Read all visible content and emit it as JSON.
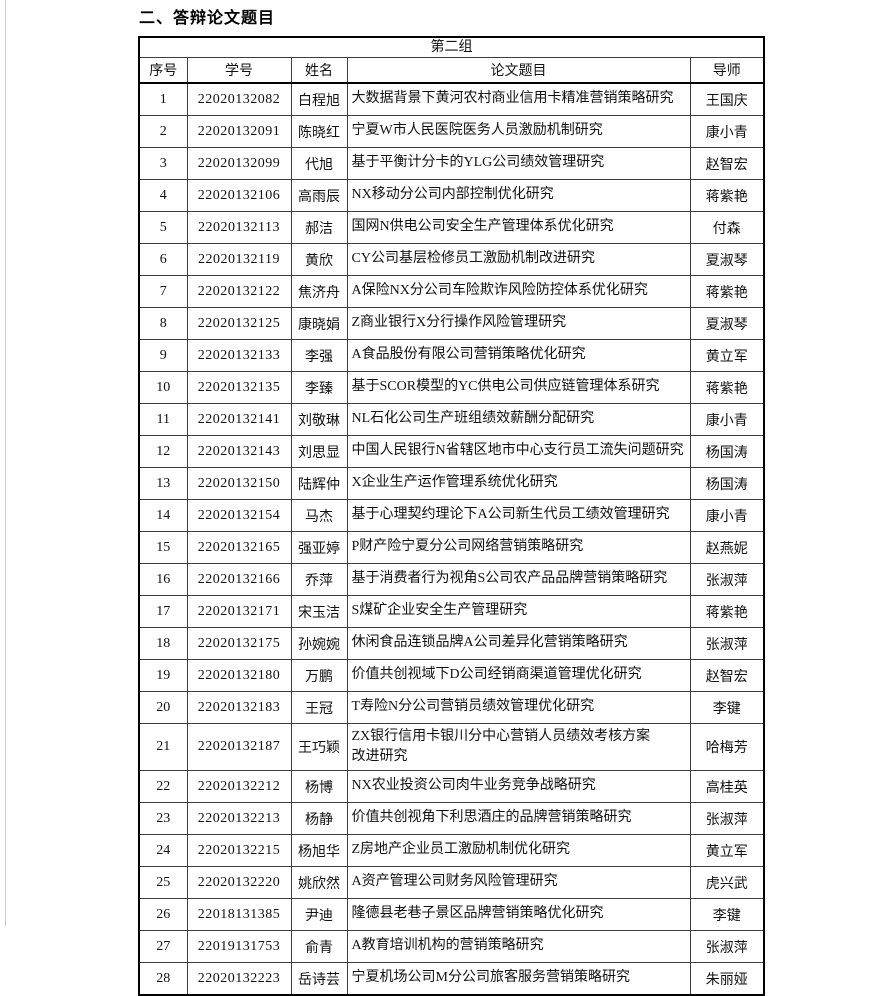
{
  "page": {
    "section_title": "二、答辩论文题目"
  },
  "table": {
    "group_title": "第二组",
    "columns": [
      "序号",
      "学号",
      "姓名",
      "论文题目",
      "导师"
    ],
    "rows": [
      {
        "no": "1",
        "student_id": "22020132082",
        "name": "白程旭",
        "thesis_title": "大数据背景下黄河农村商业信用卡精准营销策略研究",
        "advisor": "王国庆"
      },
      {
        "no": "2",
        "student_id": "22020132091",
        "name": "陈晓红",
        "thesis_title": "宁夏W市人民医院医务人员激励机制研究",
        "advisor": "康小青"
      },
      {
        "no": "3",
        "student_id": "22020132099",
        "name": "代旭",
        "thesis_title": "基于平衡计分卡的YLG公司绩效管理研究",
        "advisor": "赵智宏"
      },
      {
        "no": "4",
        "student_id": "22020132106",
        "name": "高雨辰",
        "thesis_title": "NX移动分公司内部控制优化研究",
        "advisor": "蒋紫艳"
      },
      {
        "no": "5",
        "student_id": "22020132113",
        "name": "郝洁",
        "thesis_title": "国网N供电公司安全生产管理体系优化研究",
        "advisor": "付森"
      },
      {
        "no": "6",
        "student_id": "22020132119",
        "name": "黄欣",
        "thesis_title": "CY公司基层检修员工激励机制改进研究",
        "advisor": "夏淑琴"
      },
      {
        "no": "7",
        "student_id": "22020132122",
        "name": "焦济舟",
        "thesis_title": "A保险NX分公司车险欺诈风险防控体系优化研究",
        "advisor": "蒋紫艳"
      },
      {
        "no": "8",
        "student_id": "22020132125",
        "name": "康晓娟",
        "thesis_title": "Z商业银行X分行操作风险管理研究",
        "advisor": "夏淑琴"
      },
      {
        "no": "9",
        "student_id": "22020132133",
        "name": "李强",
        "thesis_title": "A食品股份有限公司营销策略优化研究",
        "advisor": "黄立军"
      },
      {
        "no": "10",
        "student_id": "22020132135",
        "name": "李臻",
        "thesis_title": "基于SCOR模型的YC供电公司供应链管理体系研究",
        "advisor": "蒋紫艳"
      },
      {
        "no": "11",
        "student_id": "22020132141",
        "name": "刘敬琳",
        "thesis_title": "NL石化公司生产班组绩效薪酬分配研究",
        "advisor": "康小青"
      },
      {
        "no": "12",
        "student_id": "22020132143",
        "name": "刘思显",
        "thesis_title": "中国人民银行N省辖区地市中心支行员工流失问题研究",
        "advisor": "杨国涛"
      },
      {
        "no": "13",
        "student_id": "22020132150",
        "name": "陆辉仲",
        "thesis_title": "X企业生产运作管理系统优化研究",
        "advisor": "杨国涛"
      },
      {
        "no": "14",
        "student_id": "22020132154",
        "name": "马杰",
        "thesis_title": "基于心理契约理论下A公司新生代员工绩效管理研究",
        "advisor": "康小青"
      },
      {
        "no": "15",
        "student_id": "22020132165",
        "name": "强亚婷",
        "thesis_title": "P财产险宁夏分公司网络营销策略研究",
        "advisor": "赵燕妮"
      },
      {
        "no": "16",
        "student_id": "22020132166",
        "name": "乔萍",
        "thesis_title": "基于消费者行为视角S公司农产品品牌营销策略研究",
        "advisor": "张淑萍"
      },
      {
        "no": "17",
        "student_id": "22020132171",
        "name": "宋玉洁",
        "thesis_title": "S煤矿企业安全生产管理研究",
        "advisor": "蒋紫艳"
      },
      {
        "no": "18",
        "student_id": "22020132175",
        "name": "孙婉婉",
        "thesis_title": "休闲食品连锁品牌A公司差异化营销策略研究",
        "advisor": "张淑萍"
      },
      {
        "no": "19",
        "student_id": "22020132180",
        "name": "万鹏",
        "thesis_title": "价值共创视域下D公司经销商渠道管理优化研究",
        "advisor": "赵智宏"
      },
      {
        "no": "20",
        "student_id": "22020132183",
        "name": "王冠",
        "thesis_title": "T寿险N分公司营销员绩效管理优化研究",
        "advisor": "李键"
      },
      {
        "no": "21",
        "student_id": "22020132187",
        "name": "王巧颖",
        "thesis_title": "ZX银行信用卡银川分中心营销人员绩效考核方案\n改进研究",
        "advisor": "哈梅芳"
      },
      {
        "no": "22",
        "student_id": "22020132212",
        "name": "杨博",
        "thesis_title": "NX农业投资公司肉牛业务竞争战略研究",
        "advisor": "高桂英"
      },
      {
        "no": "23",
        "student_id": "22020132213",
        "name": "杨静",
        "thesis_title": "价值共创视角下利思酒庄的品牌营销策略研究",
        "advisor": "张淑萍"
      },
      {
        "no": "24",
        "student_id": "22020132215",
        "name": "杨旭华",
        "thesis_title": "Z房地产企业员工激励机制优化研究",
        "advisor": "黄立军"
      },
      {
        "no": "25",
        "student_id": "22020132220",
        "name": "姚欣然",
        "thesis_title": "A资产管理公司财务风险管理研究",
        "advisor": "虎兴武"
      },
      {
        "no": "26",
        "student_id": "22018131385",
        "name": "尹迪",
        "thesis_title": "隆德县老巷子景区品牌营销策略优化研究",
        "advisor": "李键"
      },
      {
        "no": "27",
        "student_id": "22019131753",
        "name": "俞青",
        "thesis_title": "A教育培训机构的营销策略研究",
        "advisor": "张淑萍"
      },
      {
        "no": "28",
        "student_id": "22020132223",
        "name": "岳诗芸",
        "thesis_title": "宁夏机场公司M分公司旅客服务营销策略研究",
        "advisor": "朱丽娅"
      }
    ]
  }
}
